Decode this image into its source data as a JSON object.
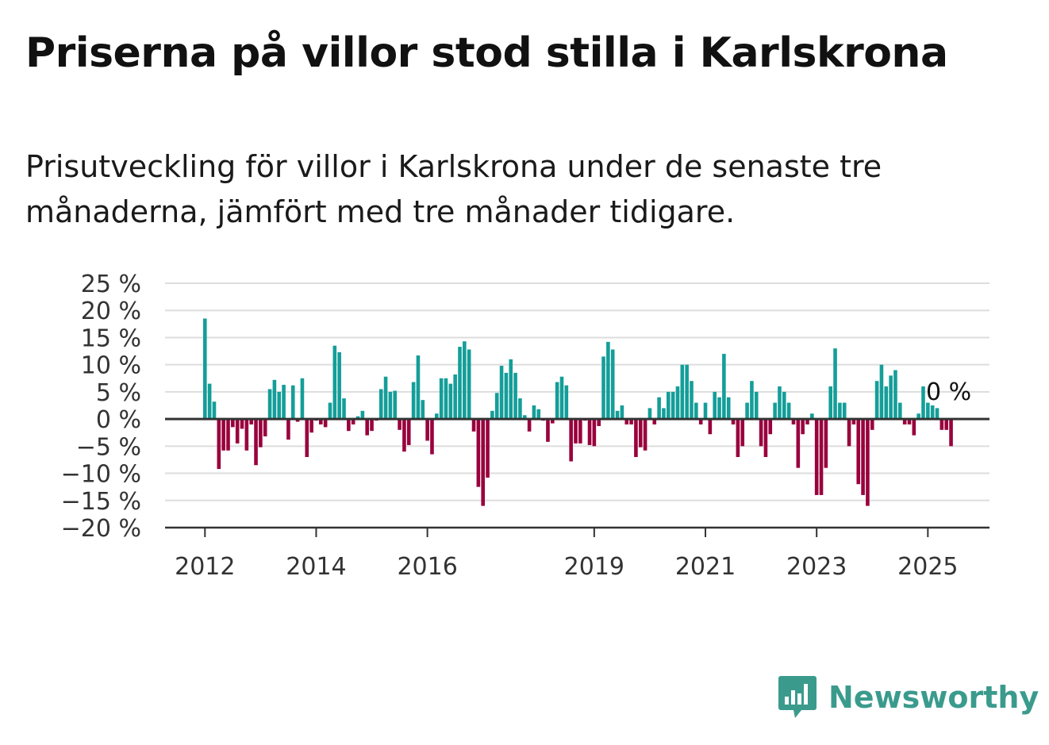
{
  "title": "Priserna på villor stod stilla i Karlskrona",
  "subtitle": "Prisutveckling för villor i Karlskrona under de senaste tre månaderna, jämfört med tre månader tidigare.",
  "brand": {
    "name": "Newsworthy",
    "color": "#3a9b8d"
  },
  "colors": {
    "positive": "#149e99",
    "negative": "#99003d",
    "grid": "#dddddd",
    "axis": "#333333"
  },
  "chart_data": {
    "type": "bar",
    "x_start": "2012-01",
    "x_end": "2025-06",
    "ylim": [
      -20,
      25
    ],
    "y_ticks": [
      25,
      20,
      15,
      10,
      5,
      0,
      -5,
      -10,
      -15,
      -20
    ],
    "y_tick_labels": [
      "25 %",
      "20 %",
      "15 %",
      "10 %",
      "5 %",
      "0 %",
      "−5 %",
      "−10 %",
      "−15 %",
      "−20 %"
    ],
    "x_tick_labels": [
      "2012",
      "2014",
      "2016",
      "2019",
      "2021",
      "2023",
      "2025"
    ],
    "x_tick_dates": [
      "2012-01",
      "2014-01",
      "2016-01",
      "2019-01",
      "2021-01",
      "2023-01",
      "2025-01"
    ],
    "last_value_label": "0 %",
    "grid": true,
    "values": [
      18.5,
      6.5,
      3.2,
      -9.2,
      -5.8,
      -5.8,
      -1.5,
      -4.5,
      -1.8,
      -5.8,
      -1.0,
      -8.5,
      -5.2,
      -3.2,
      5.5,
      7.2,
      5.0,
      6.3,
      -3.8,
      6.2,
      -0.5,
      7.5,
      -7.0,
      -2.5,
      -0.3,
      -1.0,
      -1.5,
      3.0,
      13.5,
      12.3,
      3.8,
      -2.2,
      -1.0,
      0.5,
      1.5,
      -3.0,
      -2.2,
      -0.3,
      5.5,
      7.8,
      5.0,
      5.2,
      -2.0,
      -6.0,
      -4.8,
      6.8,
      11.7,
      3.5,
      -4.0,
      -6.5,
      1.0,
      7.5,
      7.5,
      6.5,
      8.2,
      13.3,
      14.3,
      12.8,
      -2.3,
      -12.5,
      -16.0,
      -10.8,
      1.5,
      4.8,
      9.8,
      8.5,
      11.0,
      8.5,
      3.8,
      0.7,
      -2.3,
      2.5,
      1.8,
      -0.3,
      -4.2,
      -0.8,
      6.8,
      7.8,
      6.2,
      -7.8,
      -4.5,
      -4.5,
      -0.3,
      -4.8,
      -5.0,
      -1.3,
      11.5,
      14.2,
      12.8,
      1.5,
      2.5,
      -1.0,
      -1.0,
      -7.0,
      -5.2,
      -5.8,
      2.0,
      -1.0,
      4.0,
      2.0,
      5.0,
      5.0,
      6.0,
      10.0,
      10.0,
      7.0,
      3.0,
      -1.0,
      3.0,
      -2.8,
      5.0,
      4.0,
      12.0,
      4.0,
      -1.0,
      -7.0,
      -5.0,
      3.0,
      7.0,
      5.0,
      -5.0,
      -7.0,
      -2.8,
      3.0,
      6.0,
      5.0,
      3.0,
      -1.0,
      -9.0,
      -2.8,
      -1.0,
      1.0,
      -14.0,
      -14.0,
      -9.0,
      6.0,
      13.0,
      3.0,
      3.0,
      -5.0,
      -1.0,
      -12.0,
      -14.0,
      -16.0,
      -2.0,
      7.0,
      10.0,
      6.0,
      8.0,
      9.0,
      3.0,
      -1.0,
      -1.0,
      -3.0,
      1.0,
      6.0,
      3.0,
      2.5,
      2.0,
      -2.0,
      -2.0,
      -5.0,
      0.0
    ]
  }
}
